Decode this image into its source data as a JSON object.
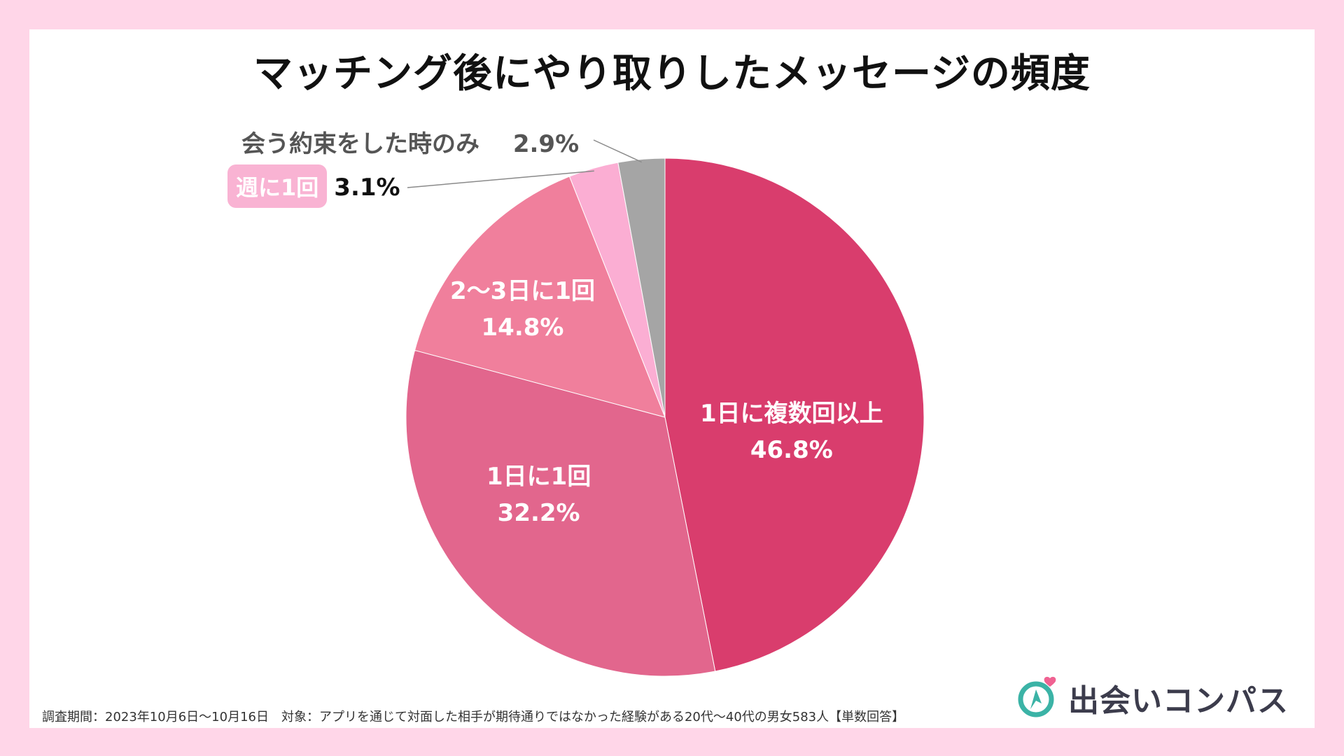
{
  "chart_data": {
    "type": "pie",
    "title": "マッチング後にやり取りしたメッセージの頻度",
    "slices": [
      {
        "label": "1日に複数回以上",
        "value": 46.8,
        "display": "46.8%",
        "color": "#d93d6d"
      },
      {
        "label": "1日に1回",
        "value": 32.2,
        "display": "32.2%",
        "color": "#e2668d"
      },
      {
        "label": "2〜3日に1回",
        "value": 14.8,
        "display": "14.8%",
        "color": "#f07f9c"
      },
      {
        "label": "週に1回",
        "value": 3.1,
        "display": "3.1%",
        "color": "#fbaed3"
      },
      {
        "label": "会う約束をした時のみ",
        "value": 2.9,
        "display": "2.9%",
        "color": "#a5a5a5"
      }
    ],
    "start_angle": "12 o'clock",
    "direction": "clockwise"
  },
  "footer": {
    "note": "調査期間：2023年10月6日〜10月16日　対象：アプリを通じて対面した相手が期待通りではなかった経験がある20代〜40代の男女583人【単数回答】"
  },
  "logo": {
    "text": "出会いコンパス",
    "icon": "compass-heart-icon",
    "colors": {
      "teal": "#3bb3a6",
      "heart": "#f06292",
      "text": "#3c3c4c"
    }
  }
}
